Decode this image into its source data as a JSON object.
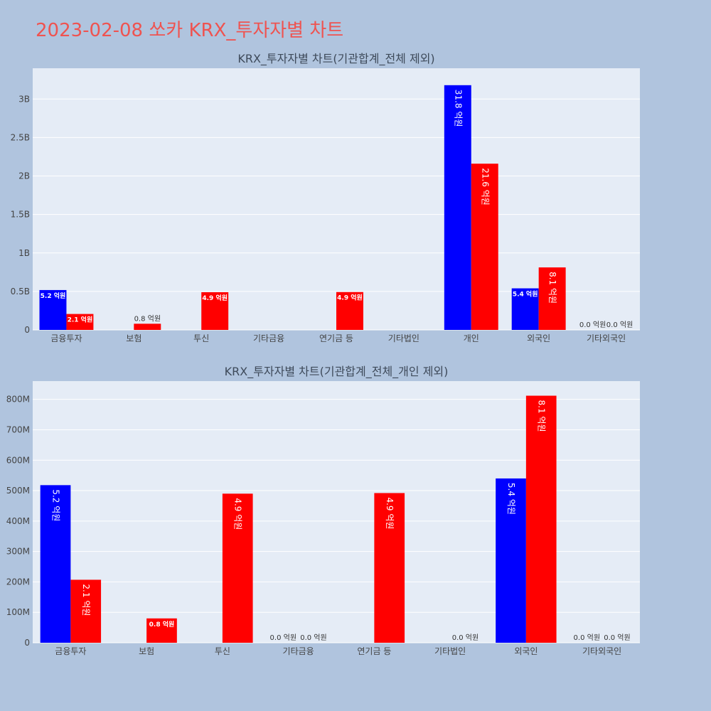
{
  "page_title": "2023-02-08 쏘카 KRX_투자자별 차트",
  "colors": {
    "background": "#b0c4de",
    "plot_background": "#e5ecf6",
    "title": "#ef5350",
    "buy": "#0000ff",
    "sell": "#ff0000"
  },
  "chart_data": [
    {
      "type": "bar",
      "title": "KRX_투자자별 차트(기관합계_전체 제외)",
      "categories": [
        "금융투자",
        "보험",
        "투신",
        "기타금융",
        "연기금 등",
        "기타법인",
        "개인",
        "외국인",
        "기타외국인"
      ],
      "series": [
        {
          "color": "#0000ff",
          "values": [
            518000000,
            0,
            0,
            0,
            0,
            0,
            3180000000,
            540000000,
            0
          ],
          "labels": [
            "5.2 억원",
            "",
            "",
            "",
            "",
            "",
            "31.8 억원",
            "5.4 억원",
            "0.0 억원"
          ]
        },
        {
          "color": "#ff0000",
          "values": [
            207000000,
            80000000,
            490000000,
            0,
            492000000,
            0,
            2160000000,
            812000000,
            0
          ],
          "labels": [
            "2.1 억원",
            "0.8 억원",
            "4.9 억원",
            "",
            "4.9 억원",
            "",
            "21.6 억원",
            "8.1 억원",
            "0.0 억원"
          ]
        }
      ],
      "ylim": [
        0,
        3400000000
      ],
      "yticks": [
        0,
        500000000,
        1000000000,
        1500000000,
        2000000000,
        2500000000,
        3000000000
      ],
      "ytick_labels": [
        "0",
        "0.5B",
        "1B",
        "1.5B",
        "2B",
        "2.5B",
        "3B"
      ],
      "xlabel": "",
      "ylabel": "",
      "grid": true
    },
    {
      "type": "bar",
      "title": "KRX_투자자별 차트(기관합계_전체_개인 제외)",
      "categories": [
        "금융투자",
        "보험",
        "투신",
        "기타금융",
        "연기금 등",
        "기타법인",
        "외국인",
        "기타외국인"
      ],
      "series": [
        {
          "color": "#0000ff",
          "values": [
            518000000,
            0,
            0,
            0,
            0,
            0,
            540000000,
            0
          ],
          "labels": [
            "5.2 억원",
            "",
            "",
            "0.0 억원",
            "",
            "",
            "5.4 억원",
            "0.0 억원"
          ]
        },
        {
          "color": "#ff0000",
          "values": [
            207000000,
            80000000,
            490000000,
            0,
            492000000,
            0,
            812000000,
            0
          ],
          "labels": [
            "2.1 억원",
            "0.8 억원",
            "4.9 억원",
            "0.0 억원",
            "4.9 억원",
            "0.0 억원",
            "8.1 억원",
            "0.0 억원"
          ]
        }
      ],
      "ylim": [
        0,
        860000000
      ],
      "yticks": [
        0,
        100000000,
        200000000,
        300000000,
        400000000,
        500000000,
        600000000,
        700000000,
        800000000
      ],
      "ytick_labels": [
        "0",
        "100M",
        "200M",
        "300M",
        "400M",
        "500M",
        "600M",
        "700M",
        "800M"
      ],
      "xlabel": "",
      "ylabel": "",
      "grid": true
    }
  ]
}
